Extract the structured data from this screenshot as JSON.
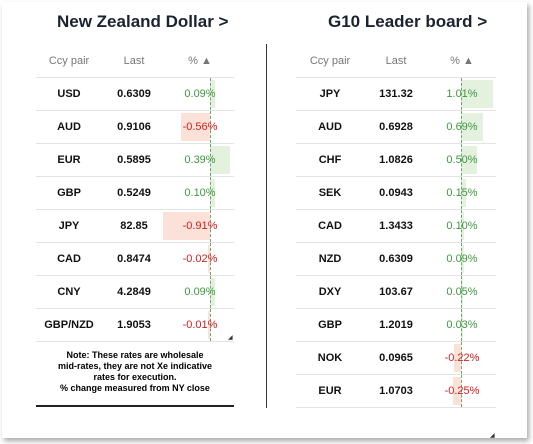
{
  "left": {
    "title": "New Zealand Dollar >",
    "headers": {
      "pair": "Ccy pair",
      "last": "Last",
      "pct": "% ▲"
    },
    "rows": [
      {
        "pair": "USD",
        "last": "0.6309",
        "pct": "0.09%",
        "value": 0.09
      },
      {
        "pair": "AUD",
        "last": "0.9106",
        "pct": "-0.56%",
        "value": -0.56
      },
      {
        "pair": "EUR",
        "last": "0.5895",
        "pct": "0.39%",
        "value": 0.39
      },
      {
        "pair": "GBP",
        "last": "0.5249",
        "pct": "0.10%",
        "value": 0.1
      },
      {
        "pair": "JPY",
        "last": "82.85",
        "pct": "-0.91%",
        "value": -0.91
      },
      {
        "pair": "CAD",
        "last": "0.8474",
        "pct": "-0.02%",
        "value": -0.02
      },
      {
        "pair": "CNY",
        "last": "4.2849",
        "pct": "0.09%",
        "value": 0.09
      },
      {
        "pair": "GBP/NZD",
        "last": "1.9053",
        "pct": "-0.01%",
        "value": -0.01
      }
    ],
    "note": [
      "Note: These rates are wholesale",
      "mid-rates, they are not Xe indicative",
      "rates for execution.",
      "% change measured from NY close"
    ]
  },
  "right": {
    "title": "G10 Leader board >",
    "headers": {
      "pair": "Ccy pair",
      "last": "Last",
      "pct": "% ▲"
    },
    "rows": [
      {
        "pair": "JPY",
        "last": "131.32",
        "pct": "1.01%",
        "value": 1.01
      },
      {
        "pair": "AUD",
        "last": "0.6928",
        "pct": "0.69%",
        "value": 0.69
      },
      {
        "pair": "CHF",
        "last": "1.0826",
        "pct": "0.50%",
        "value": 0.5
      },
      {
        "pair": "SEK",
        "last": "0.0943",
        "pct": "0.15%",
        "value": 0.15
      },
      {
        "pair": "CAD",
        "last": "1.3433",
        "pct": "0.10%",
        "value": 0.1
      },
      {
        "pair": "NZD",
        "last": "0.6309",
        "pct": "0.09%",
        "value": 0.09
      },
      {
        "pair": "DXY",
        "last": "103.67",
        "pct": "0.05%",
        "value": 0.05
      },
      {
        "pair": "GBP",
        "last": "1.2019",
        "pct": "0.03%",
        "value": 0.03
      },
      {
        "pair": "NOK",
        "last": "0.0965",
        "pct": "-0.22%",
        "value": -0.22
      },
      {
        "pair": "EUR",
        "last": "1.0703",
        "pct": "-0.25%",
        "value": -0.25
      }
    ]
  },
  "colors": {
    "positive": "#3f9740",
    "negative": "#d01e1e",
    "positive_bar": "#e4f1df",
    "negative_bar": "#fbe1d8"
  }
}
